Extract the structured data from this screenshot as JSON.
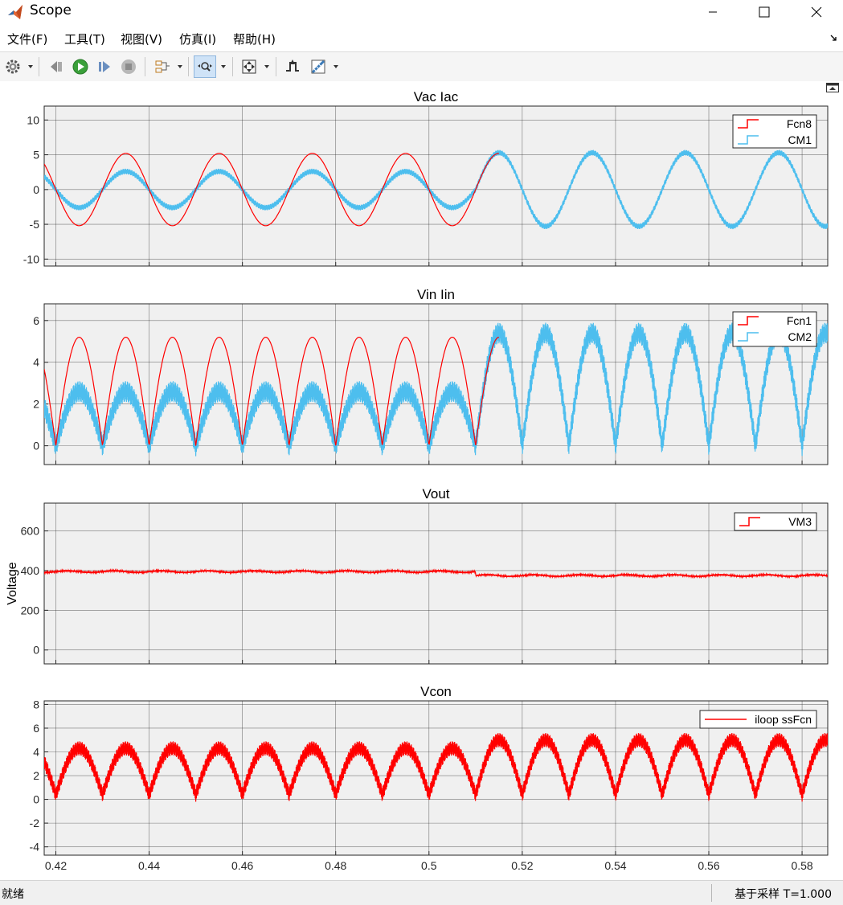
{
  "window": {
    "title": "Scope"
  },
  "menu": {
    "items": [
      {
        "label": "文件(F)"
      },
      {
        "label": "工具(T)"
      },
      {
        "label": "视图(V)"
      },
      {
        "label": "仿真(I)"
      },
      {
        "label": "帮助(H)"
      }
    ]
  },
  "toolbar": {
    "icons": [
      "gear-icon",
      "step-back-icon",
      "run-icon",
      "step-forward-icon",
      "stop-icon",
      "signal-select-icon",
      "zoom-x-icon",
      "fit-to-view-icon",
      "triggers-icon",
      "measurements-icon"
    ]
  },
  "colors": {
    "red": "#ff0000",
    "cyan": "#4dbeee",
    "axes_bg": "#f0f0f0"
  },
  "status": {
    "left": "就绪",
    "right": "基于采样  T=1.000"
  },
  "chart_data": [
    {
      "type": "line",
      "title": "Vac Iac",
      "ylabel": "",
      "xlim": [
        0.4175,
        0.5855
      ],
      "ylim": [
        -11,
        12
      ],
      "yticks": [
        "10",
        "5",
        "0",
        "-5",
        "-10"
      ],
      "ytick_values": [
        10,
        5,
        0,
        -5,
        -10
      ],
      "legend": {
        "position": "top-right",
        "entries": [
          "Fcn8",
          "CM1"
        ]
      },
      "series": [
        {
          "name": "Fcn8",
          "color": "#ff0000",
          "wave": "sine",
          "amplitude": 5.2,
          "phase_zero_at": 0.41,
          "until": 0.515
        },
        {
          "name": "CM1",
          "color": "#4dbeee",
          "wave": "sine",
          "amplitude_before": 2.6,
          "amplitude_after": 5.3,
          "switch_at": 0.51,
          "ripple": 0.4
        }
      ]
    },
    {
      "type": "line",
      "title": "Vin Iin",
      "ylabel": "",
      "xlim": [
        0.4175,
        0.5855
      ],
      "ylim": [
        -0.9,
        6.8
      ],
      "yticks": [
        "6",
        "4",
        "2",
        "0"
      ],
      "ytick_values": [
        6,
        4,
        2,
        0
      ],
      "legend": {
        "position": "top-right",
        "entries": [
          "Fcn1",
          "CM2"
        ]
      },
      "series": [
        {
          "name": "Fcn1",
          "color": "#ff0000",
          "wave": "abs-sine",
          "amplitude": 5.2,
          "until": 0.515
        },
        {
          "name": "CM2",
          "color": "#4dbeee",
          "wave": "abs-sine",
          "amplitude_before": 2.6,
          "amplitude_after": 5.4,
          "switch_at": 0.51,
          "ripple": 0.5
        }
      ]
    },
    {
      "type": "line",
      "title": "Vout",
      "ylabel": "Voltage",
      "xlim": [
        0.4175,
        0.5855
      ],
      "ylim": [
        -70,
        740
      ],
      "yticks": [
        "600",
        "400",
        "200",
        "0"
      ],
      "ytick_values": [
        600,
        400,
        200,
        0
      ],
      "legend": {
        "position": "top-right",
        "entries": [
          "VM3"
        ]
      },
      "series": [
        {
          "name": "VM3",
          "color": "#ff0000",
          "wave": "dc-ripple",
          "level_before": 395,
          "level_after": 375,
          "switch_at": 0.51,
          "ripple": 4
        }
      ]
    },
    {
      "type": "line",
      "title": "Vcon",
      "ylabel": "",
      "xlim": [
        0.4175,
        0.5855
      ],
      "ylim": [
        -4.7,
        8.3
      ],
      "yticks": [
        "8",
        "6",
        "4",
        "2",
        "0",
        "-2",
        "-4"
      ],
      "ytick_values": [
        8,
        6,
        4,
        2,
        0,
        -2,
        -4
      ],
      "xticks": [
        "0.42",
        "0.44",
        "0.46",
        "0.48",
        "0.5",
        "0.52",
        "0.54",
        "0.56",
        "0.58"
      ],
      "xtick_values": [
        0.42,
        0.44,
        0.46,
        0.48,
        0.5,
        0.52,
        0.54,
        0.56,
        0.58
      ],
      "legend": {
        "position": "top-right",
        "entries": [
          "iloop ssFcn"
        ]
      },
      "series": [
        {
          "name": "iloop ssFcn",
          "color": "#ff0000",
          "wave": "abs-sine-offset",
          "low": 0.4,
          "high_before": 4.3,
          "high_after": 5.0,
          "switch_at": 0.51,
          "ripple": 0.6
        }
      ]
    }
  ]
}
